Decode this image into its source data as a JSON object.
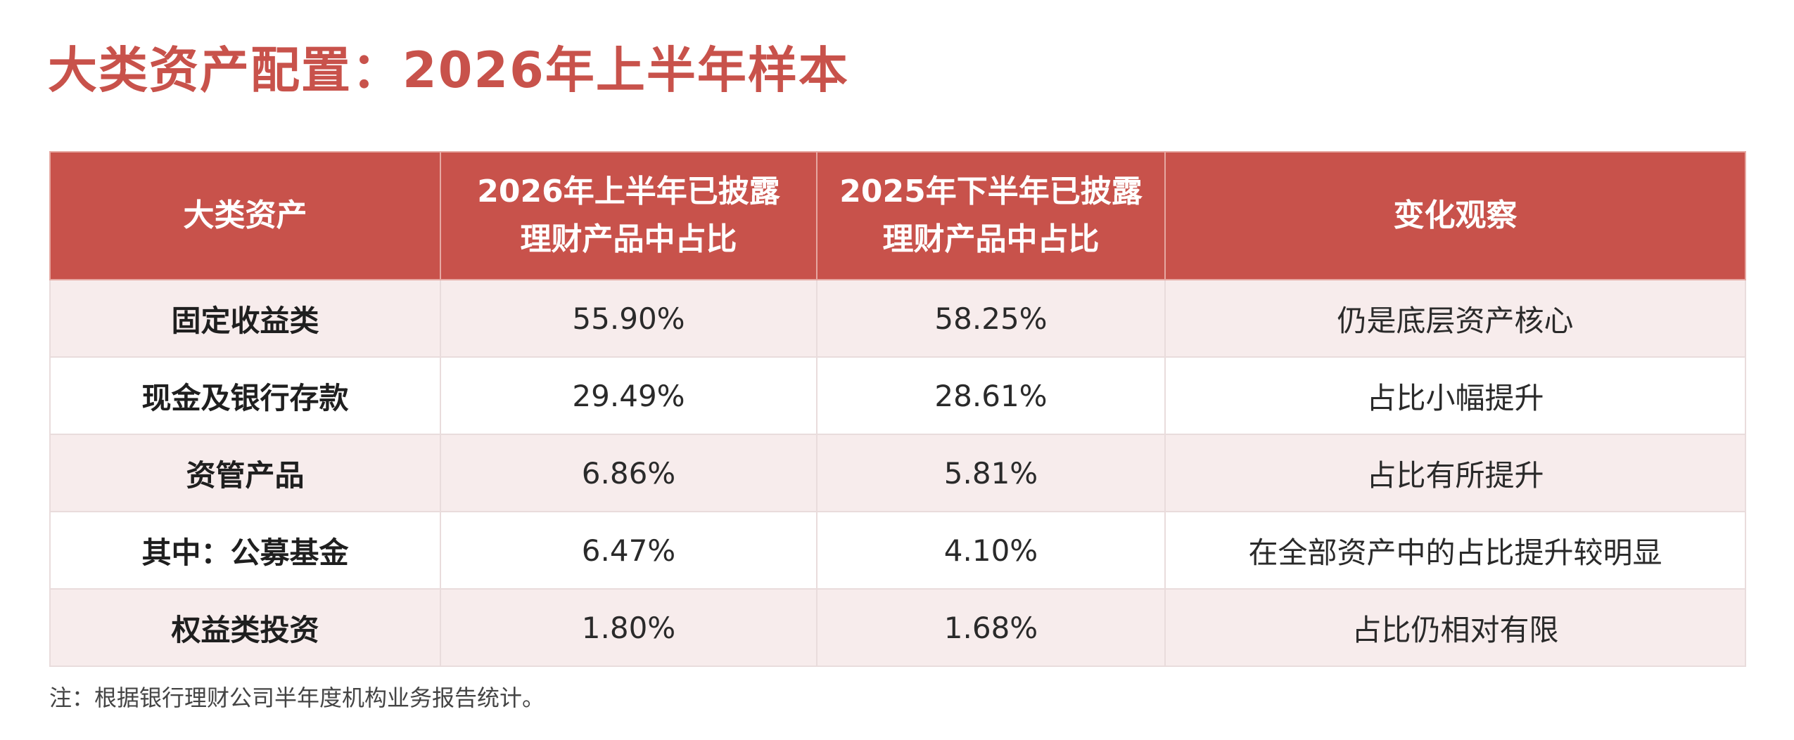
{
  "title": "大类资产配置：2026年上半年样本",
  "colors": {
    "accent": "#c8524b",
    "header_text": "#ffffff",
    "row_shade": "#f7ecec",
    "row_plain": "#ffffff"
  },
  "table": {
    "headers": [
      "大类资产",
      "2026年上半年已披露理财产品中占比",
      "2025年下半年已披露理财产品中占比",
      "变化观察"
    ],
    "rows": [
      {
        "asset": "固定收益类",
        "h1_2026": "55.90%",
        "h2_2025": "58.25%",
        "observation": "仍是底层资产核心"
      },
      {
        "asset": "现金及银行存款",
        "h1_2026": "29.49%",
        "h2_2025": "28.61%",
        "observation": "占比小幅提升"
      },
      {
        "asset": "资管产品",
        "h1_2026": "6.86%",
        "h2_2025": "5.81%",
        "observation": "占比有所提升"
      },
      {
        "asset": "其中：公募基金",
        "h1_2026": "6.47%",
        "h2_2025": "4.10%",
        "observation": "在全部资产中的占比提升较明显"
      },
      {
        "asset": "权益类投资",
        "h1_2026": "1.80%",
        "h2_2025": "1.68%",
        "observation": "占比仍相对有限"
      }
    ]
  },
  "footnote": "注：根据银行理财公司半年度机构业务报告统计。"
}
